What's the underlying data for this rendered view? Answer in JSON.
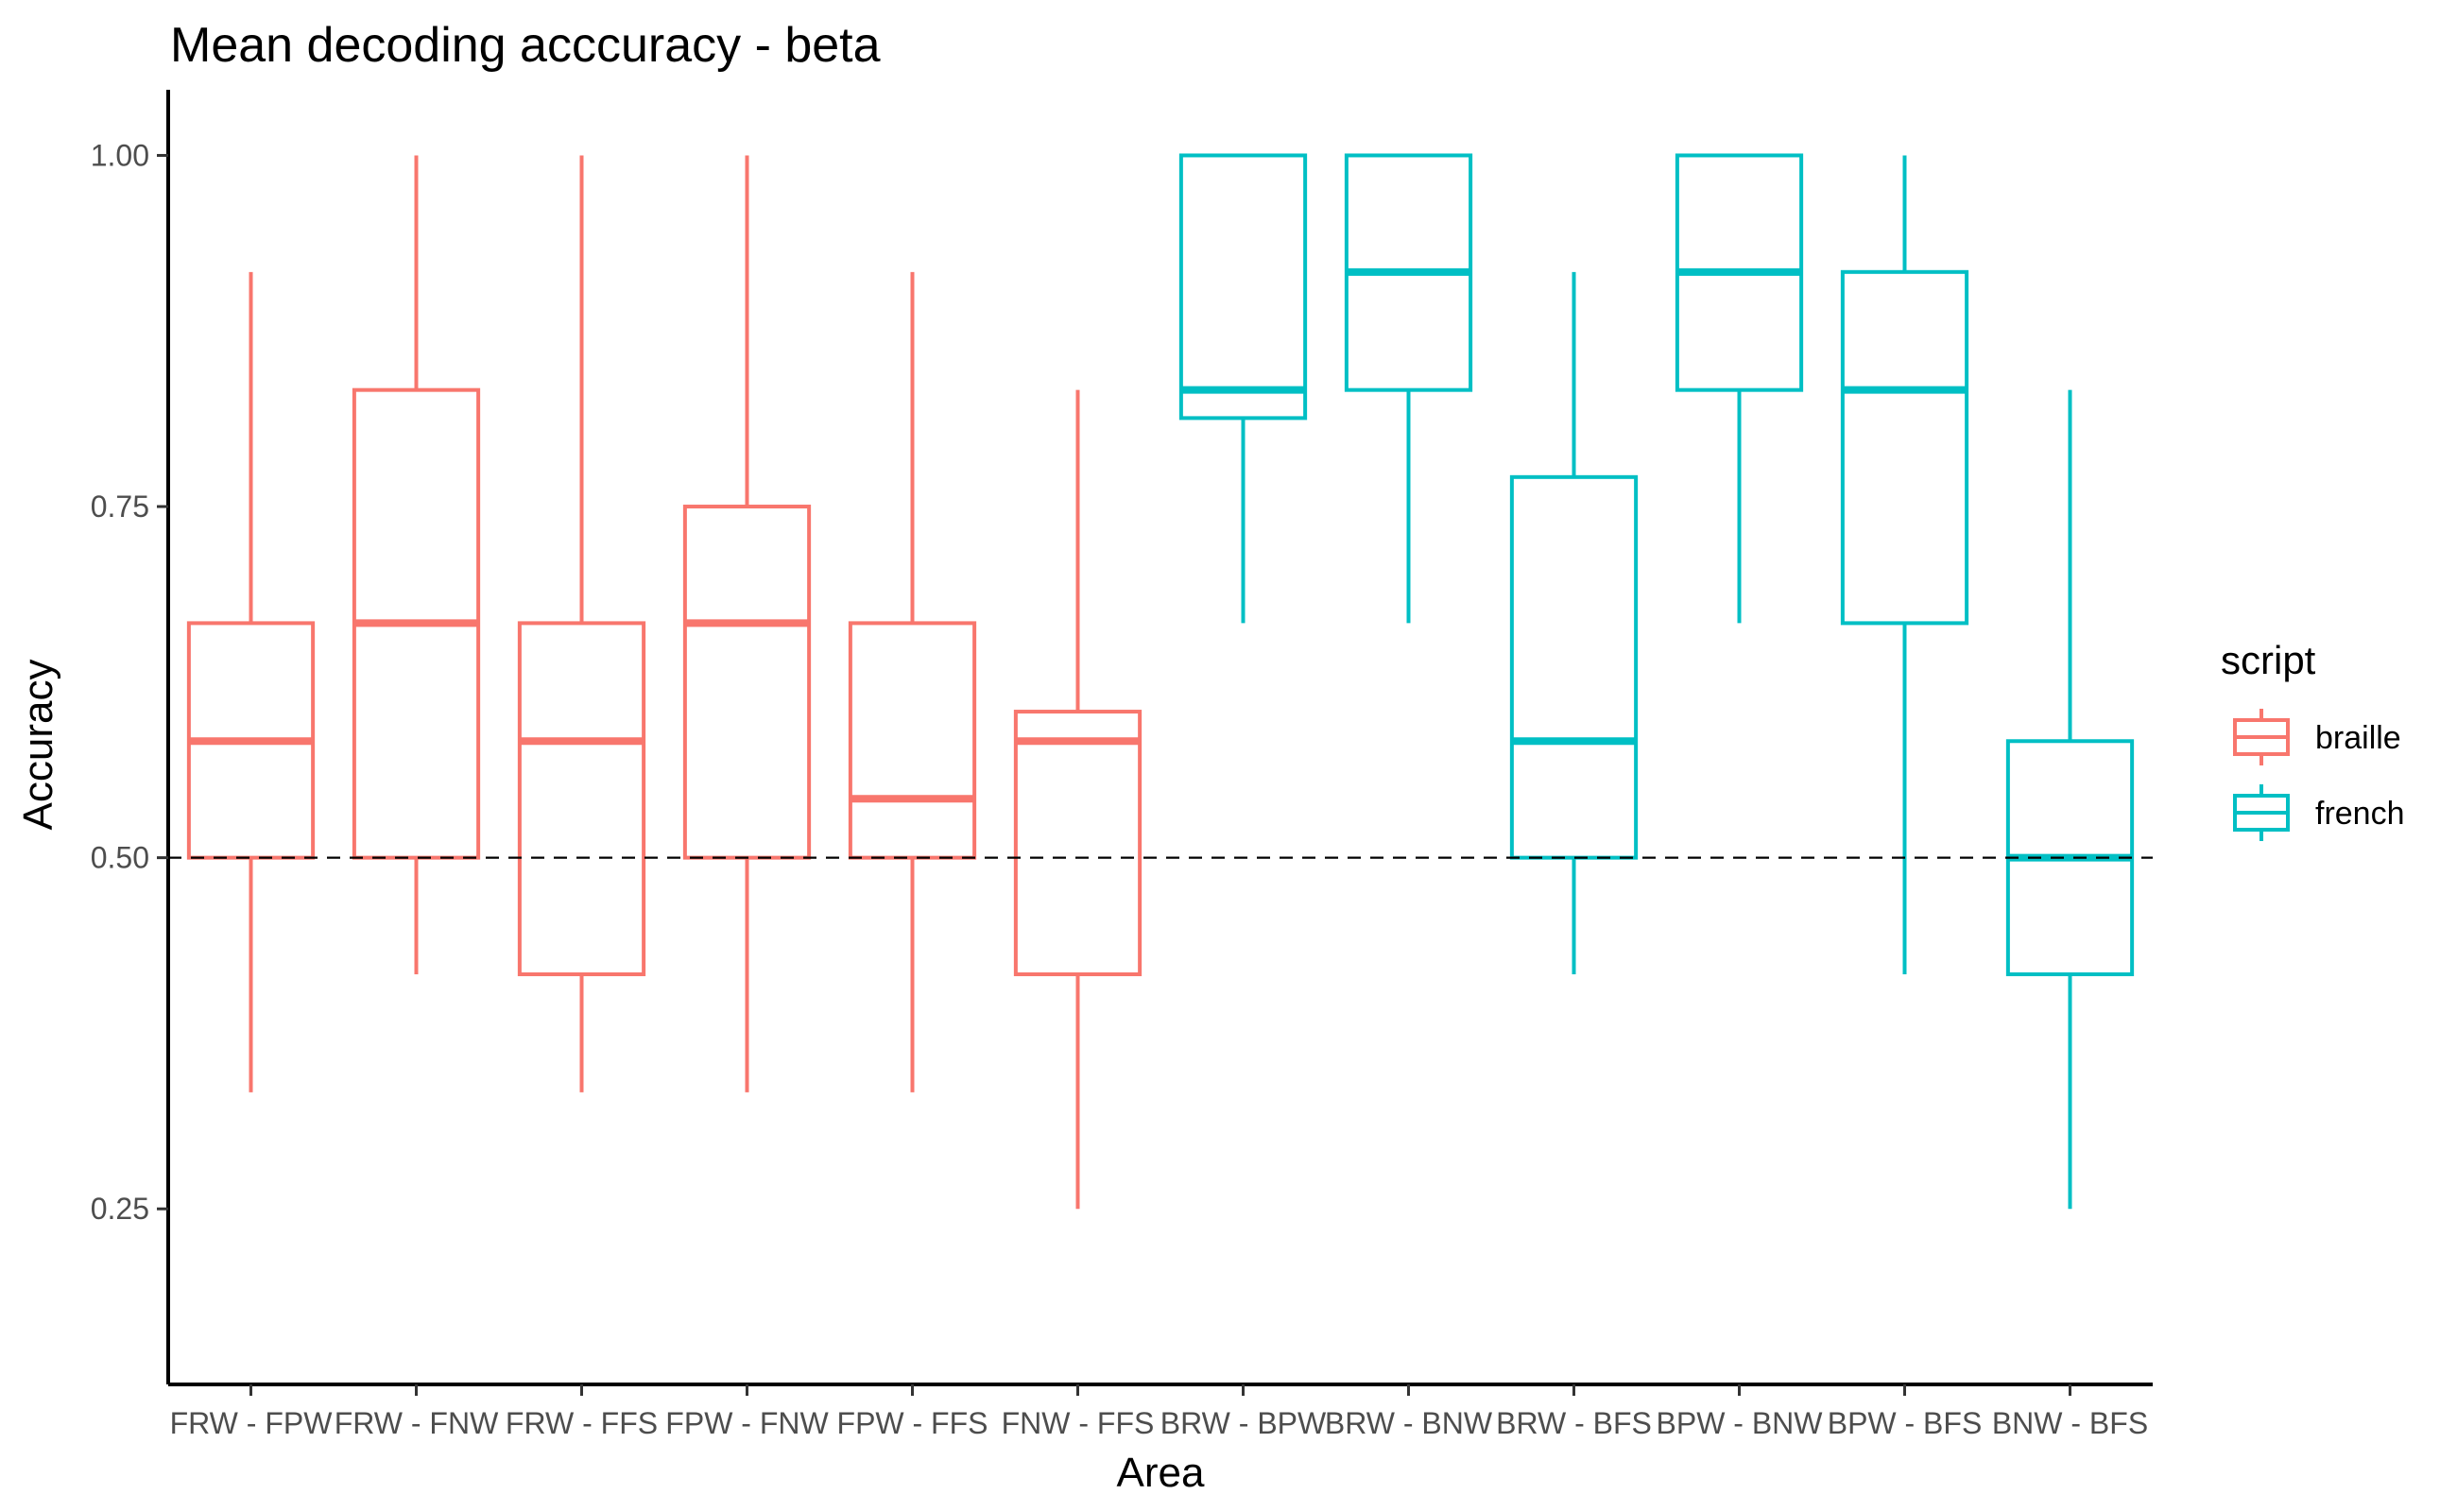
{
  "chart_data": {
    "type": "boxplot",
    "title": "Mean decoding acccuracy - beta",
    "xlabel": "Area",
    "ylabel": "Accuracy",
    "ylim": [
      0.125,
      1.04
    ],
    "yticks": [
      0.25,
      0.5,
      0.75,
      1.0
    ],
    "ytick_labels": [
      "0.25",
      "0.50",
      "0.75",
      "1.00"
    ],
    "reference_line": 0.5,
    "grid": false,
    "legend": {
      "title": "script",
      "placement": "right",
      "entries": [
        {
          "label": "braille",
          "color": "#F8766D"
        },
        {
          "label": "french",
          "color": "#00BFC4"
        }
      ]
    },
    "categories": [
      "FRW - FPW",
      "FRW - FNW",
      "FRW - FFS",
      "FPW - FNW",
      "FPW - FFS",
      "FNW - FFS",
      "BRW - BPW",
      "BRW - BNW",
      "BRW - BFS",
      "BPW - BNW",
      "BPW - BFS",
      "BNW - BFS"
    ],
    "boxes": [
      {
        "category": "FRW - FPW",
        "script": "braille",
        "min": 0.333,
        "q1": 0.5,
        "median": 0.583,
        "q3": 0.667,
        "max": 0.917
      },
      {
        "category": "FRW - FNW",
        "script": "braille",
        "min": 0.417,
        "q1": 0.5,
        "median": 0.667,
        "q3": 0.833,
        "max": 1.0
      },
      {
        "category": "FRW - FFS",
        "script": "braille",
        "min": 0.333,
        "q1": 0.417,
        "median": 0.583,
        "q3": 0.667,
        "max": 1.0
      },
      {
        "category": "FPW - FNW",
        "script": "braille",
        "min": 0.333,
        "q1": 0.5,
        "median": 0.667,
        "q3": 0.75,
        "max": 1.0
      },
      {
        "category": "FPW - FFS",
        "script": "braille",
        "min": 0.333,
        "q1": 0.5,
        "median": 0.542,
        "q3": 0.667,
        "max": 0.917
      },
      {
        "category": "FNW - FFS",
        "script": "braille",
        "min": 0.25,
        "q1": 0.417,
        "median": 0.583,
        "q3": 0.604,
        "max": 0.833
      },
      {
        "category": "BRW - BPW",
        "script": "french",
        "min": 0.667,
        "q1": 0.813,
        "median": 0.833,
        "q3": 1.0,
        "max": 1.0
      },
      {
        "category": "BRW - BNW",
        "script": "french",
        "min": 0.667,
        "q1": 0.833,
        "median": 0.917,
        "q3": 1.0,
        "max": 1.0
      },
      {
        "category": "BRW - BFS",
        "script": "french",
        "min": 0.417,
        "q1": 0.5,
        "median": 0.583,
        "q3": 0.771,
        "max": 0.917
      },
      {
        "category": "BPW - BNW",
        "script": "french",
        "min": 0.667,
        "q1": 0.833,
        "median": 0.917,
        "q3": 1.0,
        "max": 1.0
      },
      {
        "category": "BPW - BFS",
        "script": "french",
        "min": 0.417,
        "q1": 0.667,
        "median": 0.833,
        "q3": 0.917,
        "max": 1.0
      },
      {
        "category": "BNW - BFS",
        "script": "french",
        "min": 0.25,
        "q1": 0.417,
        "median": 0.5,
        "q3": 0.583,
        "max": 0.833
      }
    ]
  }
}
